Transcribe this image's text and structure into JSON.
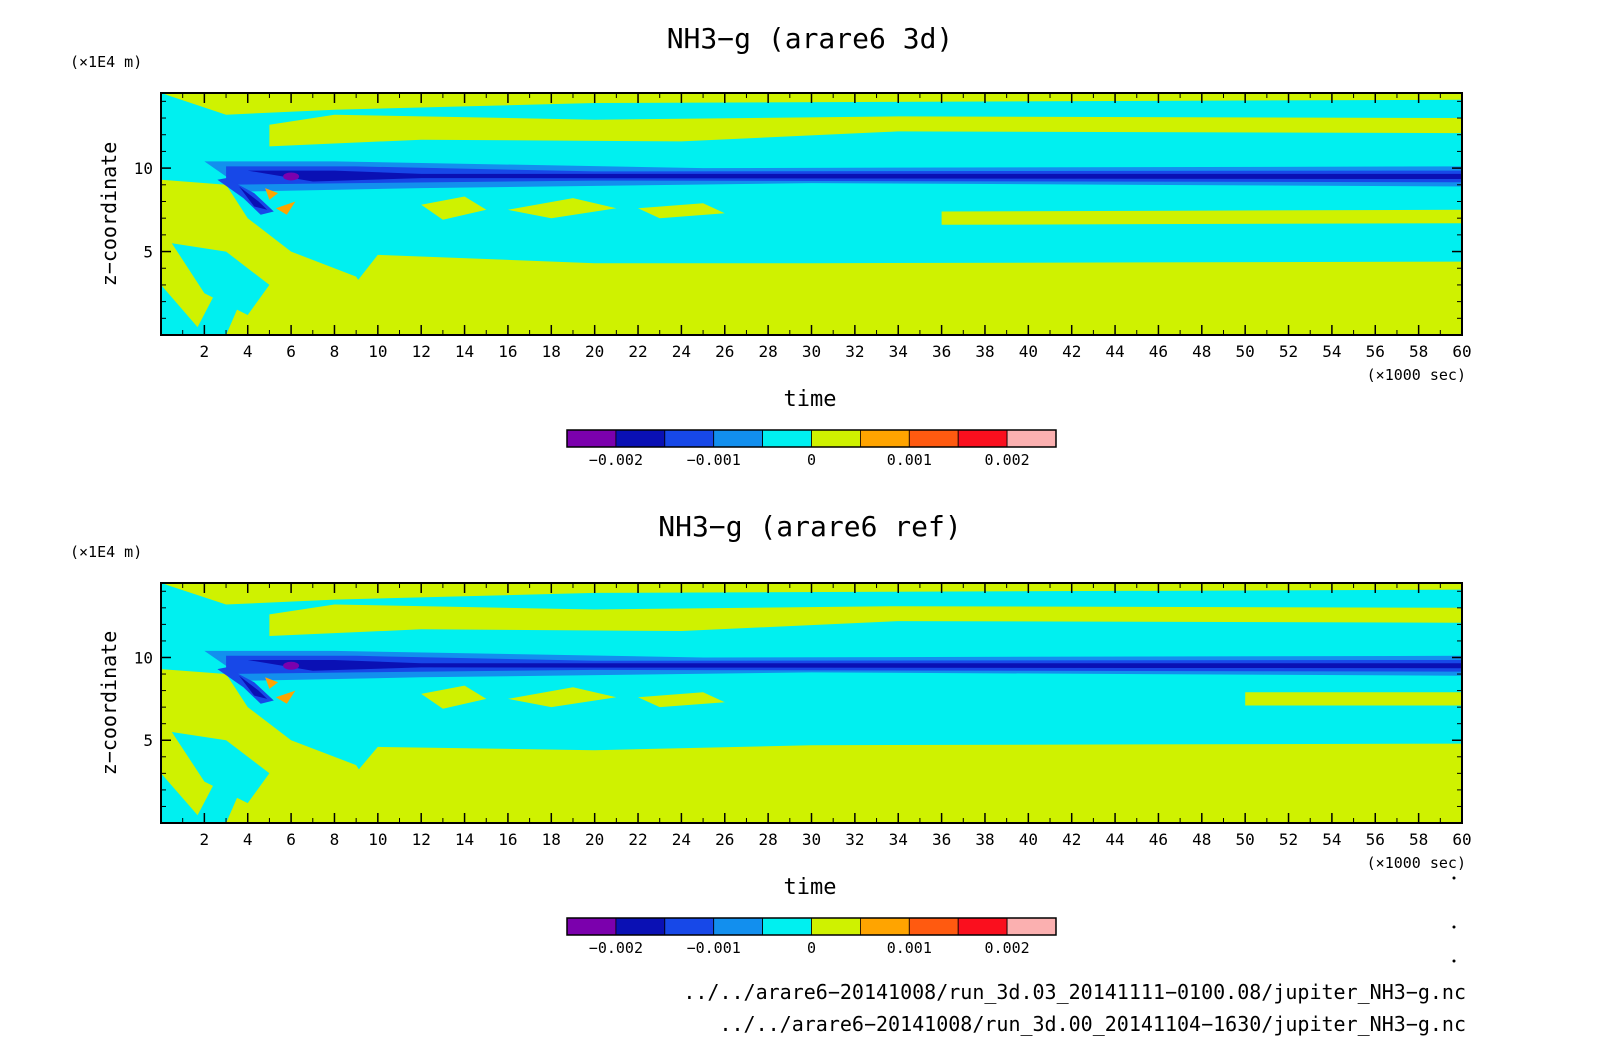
{
  "colors": {
    "levels": [
      "#7b00ad",
      "#0a10b4",
      "#1748e8",
      "#128fee",
      "#00f0f0",
      "#cff200",
      "#ffa400",
      "#ff5a10",
      "#fa0f1e",
      "#fbb0b0"
    ],
    "background_zero_pos": "#cff200",
    "background_zero_neg": "#00f0f0"
  },
  "chart_data": [
    {
      "type": "heatmap",
      "title": "NH3−g (arare6 3d)",
      "xlabel": "time",
      "x_unit": "(×1000 sec)",
      "ylabel": "z−coordinate",
      "y_unit": "(×1E4 m)",
      "xlim": [
        0,
        60
      ],
      "ylim": [
        0,
        14.5
      ],
      "x_ticks": [
        "2",
        "4",
        "6",
        "8",
        "10",
        "12",
        "14",
        "16",
        "18",
        "20",
        "22",
        "24",
        "26",
        "28",
        "30",
        "32",
        "34",
        "36",
        "38",
        "40",
        "42",
        "44",
        "46",
        "48",
        "50",
        "52",
        "54",
        "56",
        "58",
        "60"
      ],
      "y_ticks": [
        "5",
        "10"
      ],
      "colorbar": {
        "levels": [
          -0.0025,
          -0.002,
          -0.0015,
          -0.001,
          -0.0005,
          0,
          0.0005,
          0.001,
          0.0015,
          0.002,
          0.0025
        ],
        "tick_labels": [
          "−0.002",
          "−0.001",
          "0",
          "0.001",
          "0.002"
        ],
        "tick_values": [
          -0.002,
          -0.001,
          0,
          0.001,
          0.002
        ]
      },
      "features": {
        "negative_layer_z": 9.5,
        "upper_positive_band": [
          [
            5,
            11
          ],
          [
            20,
            11.5
          ],
          [
            34,
            12.6
          ],
          [
            60,
            12.4
          ]
        ],
        "lower_positive_top": [
          [
            10,
            4.8
          ],
          [
            20,
            4.3
          ],
          [
            30,
            4.3
          ],
          [
            60,
            4.4
          ]
        ],
        "middle_positive_band": [
          [
            36,
            7.0
          ],
          [
            60,
            7.1
          ]
        ]
      }
    },
    {
      "type": "heatmap",
      "title": "NH3−g (arare6 ref)",
      "xlabel": "time",
      "x_unit": "(×1000 sec)",
      "ylabel": "z−coordinate",
      "y_unit": "(×1E4 m)",
      "xlim": [
        0,
        60
      ],
      "ylim": [
        0,
        14.5
      ],
      "x_ticks": [
        "2",
        "4",
        "6",
        "8",
        "10",
        "12",
        "14",
        "16",
        "18",
        "20",
        "22",
        "24",
        "26",
        "28",
        "30",
        "32",
        "34",
        "36",
        "38",
        "40",
        "42",
        "44",
        "46",
        "48",
        "50",
        "52",
        "54",
        "56",
        "58",
        "60"
      ],
      "y_ticks": [
        "5",
        "10"
      ],
      "colorbar": {
        "levels": [
          -0.0025,
          -0.002,
          -0.0015,
          -0.001,
          -0.0005,
          0,
          0.0005,
          0.001,
          0.0015,
          0.002,
          0.0025
        ],
        "tick_labels": [
          "−0.002",
          "−0.001",
          "0",
          "0.001",
          "0.002"
        ],
        "tick_values": [
          -0.002,
          -0.001,
          0,
          0.001,
          0.002
        ]
      },
      "features": {
        "negative_layer_z": 9.5,
        "upper_positive_band": [
          [
            5,
            11
          ],
          [
            20,
            11.8
          ],
          [
            34,
            12.3
          ],
          [
            60,
            12.4
          ]
        ],
        "lower_positive_top": [
          [
            10,
            4.6
          ],
          [
            20,
            4.4
          ],
          [
            30,
            4.7
          ],
          [
            60,
            4.8
          ]
        ],
        "middle_positive_band": [
          [
            50,
            7.5
          ],
          [
            60,
            7.5
          ]
        ]
      }
    }
  ],
  "footer": {
    "file_3d": "../../arare6−20141008/run_3d.03_20141111−0100.08/jupiter_NH3−g.nc",
    "file_ref": "../../arare6−20141008/run_3d.00_20141104−1630/jupiter_NH3−g.nc"
  }
}
